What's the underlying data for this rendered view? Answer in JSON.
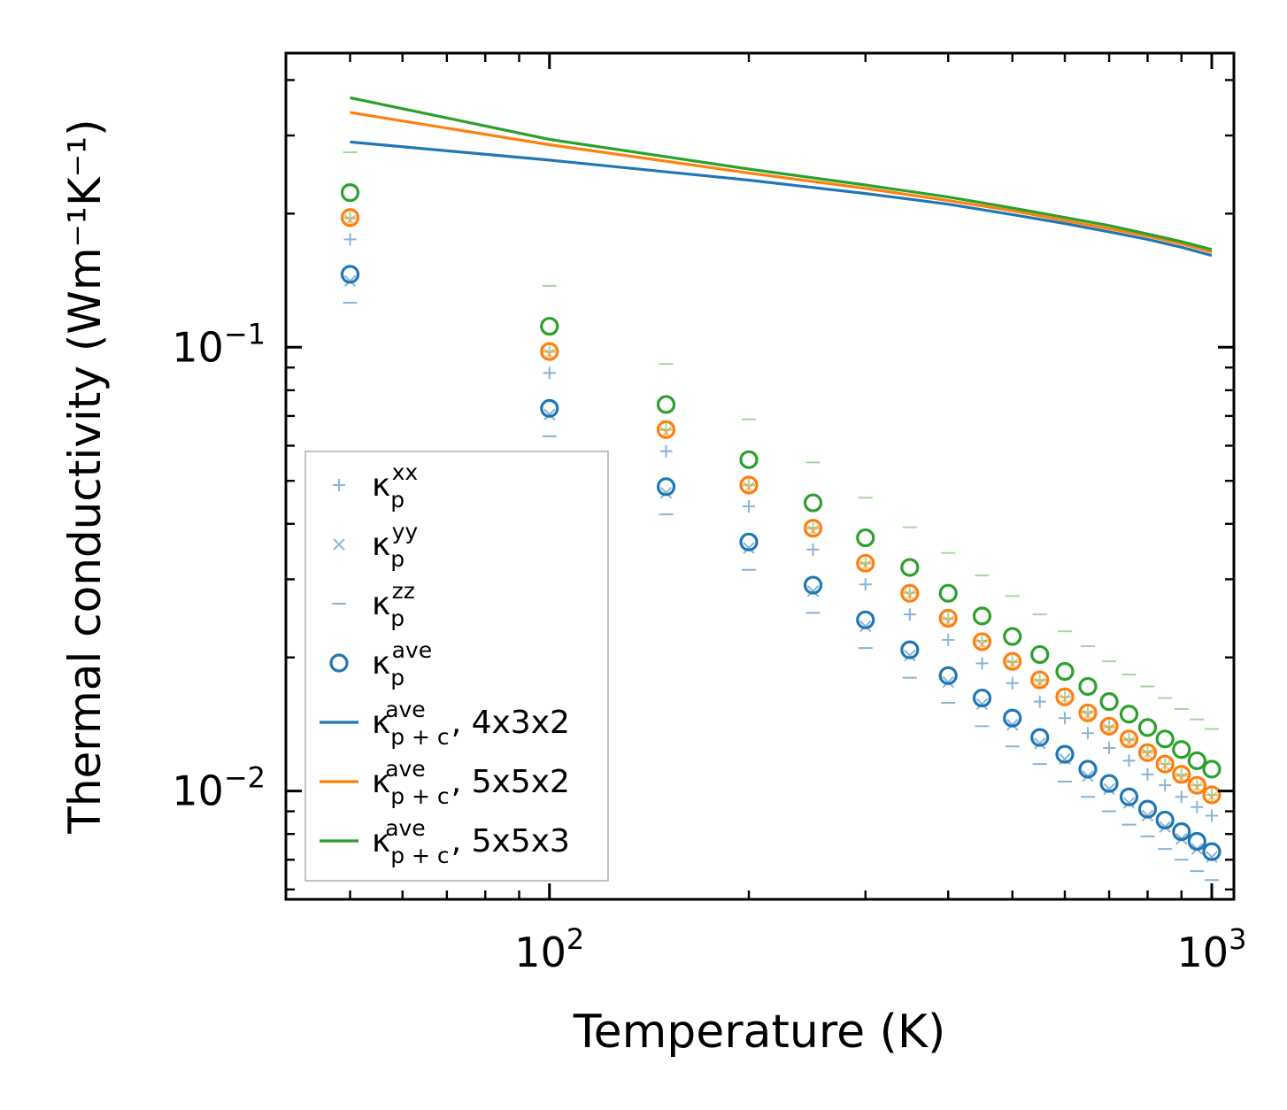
{
  "chart_data": {
    "type": "scatter",
    "title": "",
    "xlabel": "Temperature (K)",
    "ylabel": "Thermal conductivity (Wm⁻¹K⁻¹)",
    "xscale": "log",
    "yscale": "log",
    "xlim": [
      40,
      1080
    ],
    "ylim": [
      0.0057,
      0.46
    ],
    "xticks": [
      {
        "value": 100,
        "base": "10",
        "exp": "2"
      },
      {
        "value": 1000,
        "base": "10",
        "exp": "3"
      }
    ],
    "yticks": [
      {
        "value": 0.01,
        "base": "10",
        "exp": "−2"
      },
      {
        "value": 0.1,
        "base": "10",
        "exp": "−1"
      }
    ],
    "colors": {
      "blue": "#1f77b4",
      "orange": "#ff7f0e",
      "green": "#2ca02c",
      "light_blue": "#8ab4d6",
      "light_green": "#a6d6a0"
    },
    "x": [
      50,
      100,
      150,
      200,
      250,
      300,
      350,
      400,
      450,
      500,
      550,
      600,
      650,
      700,
      750,
      800,
      850,
      900,
      950,
      1000
    ],
    "series": [
      {
        "name": "κp^xx",
        "label_base": "κ",
        "label_sub": "p",
        "label_sup": "xx",
        "kind": "marker",
        "marker": "plus",
        "group": "4x3x2",
        "values": [
          0.175,
          0.0875,
          0.0583,
          0.0438,
          0.035,
          0.0292,
          0.025,
          0.0219,
          0.0194,
          0.0175,
          0.0159,
          0.0146,
          0.0135,
          0.0125,
          0.0117,
          0.0109,
          0.0103,
          0.0097,
          0.0092,
          0.0088
        ]
      },
      {
        "name": "κp^yy",
        "label_base": "κ",
        "label_sub": "p",
        "label_sup": "yy",
        "kind": "marker",
        "marker": "x",
        "group": "4x3x2",
        "values": [
          0.141,
          0.0705,
          0.047,
          0.0353,
          0.0282,
          0.0235,
          0.0202,
          0.0176,
          0.0157,
          0.0141,
          0.0128,
          0.0118,
          0.0108,
          0.0101,
          0.0094,
          0.0088,
          0.0083,
          0.0078,
          0.0074,
          0.0071
        ]
      },
      {
        "name": "κp^zz",
        "label_base": "κ",
        "label_sub": "p",
        "label_sup": "zz",
        "kind": "marker",
        "marker": "hline",
        "group": "4x3x2",
        "values": [
          0.126,
          0.063,
          0.042,
          0.0315,
          0.0252,
          0.021,
          0.018,
          0.0158,
          0.014,
          0.0126,
          0.0115,
          0.0105,
          0.0097,
          0.009,
          0.0084,
          0.0079,
          0.0074,
          0.007,
          0.0066,
          0.0063
        ]
      },
      {
        "name": "κp^ave",
        "label_base": "κ",
        "label_sub": "p",
        "label_sup": "ave",
        "kind": "marker",
        "marker": "circle",
        "group": "4x3x2",
        "values": [
          0.146,
          0.0728,
          0.0485,
          0.0364,
          0.0291,
          0.0243,
          0.0208,
          0.0182,
          0.0162,
          0.0146,
          0.0132,
          0.0121,
          0.0112,
          0.0104,
          0.0097,
          0.0091,
          0.0086,
          0.0081,
          0.0077,
          0.0073
        ]
      },
      {
        "name": "κp^xx (5x5x2)",
        "kind": "marker",
        "marker": "plus",
        "group": "5x5x2",
        "legend": false,
        "values": [
          0.195,
          0.0975,
          0.065,
          0.0488,
          0.039,
          0.0325,
          0.0279,
          0.0244,
          0.0217,
          0.0195,
          0.0177,
          0.0163,
          0.015,
          0.0139,
          0.013,
          0.0122,
          0.0115,
          0.0108,
          0.0103,
          0.0098
        ]
      },
      {
        "name": "κp^yy (5x5x2)",
        "kind": "marker",
        "marker": "x",
        "group": "5x5x2",
        "legend": false,
        "values": [
          0.193,
          0.0965,
          0.0643,
          0.0483,
          0.0386,
          0.0322,
          0.0276,
          0.0241,
          0.0214,
          0.0193,
          0.0175,
          0.0161,
          0.0148,
          0.0138,
          0.0129,
          0.0121,
          0.0114,
          0.0107,
          0.0102,
          0.0097
        ]
      },
      {
        "name": "κp^ave (5x5x2)",
        "kind": "marker",
        "marker": "circle",
        "group": "5x5x2",
        "legend": false,
        "values": [
          0.196,
          0.0978,
          0.0652,
          0.0489,
          0.0391,
          0.0326,
          0.0279,
          0.0245,
          0.0217,
          0.0196,
          0.0178,
          0.0163,
          0.015,
          0.014,
          0.0131,
          0.0122,
          0.0115,
          0.0109,
          0.0103,
          0.0098
        ]
      },
      {
        "name": "κp^xx (5x5x3)",
        "kind": "marker",
        "marker": "plus",
        "group": "5x5x3",
        "legend": false,
        "values": [
          0.196,
          0.098,
          0.0653,
          0.049,
          0.0392,
          0.0327,
          0.028,
          0.0245,
          0.0218,
          0.0196,
          0.0178,
          0.0163,
          0.0151,
          0.014,
          0.0131,
          0.0123,
          0.0115,
          0.0109,
          0.0103,
          0.0098
        ]
      },
      {
        "name": "κp^zz (5x5x3)",
        "kind": "marker",
        "marker": "hline",
        "group": "5x5x3",
        "legend": false,
        "values": [
          0.275,
          0.1375,
          0.0917,
          0.0688,
          0.055,
          0.0458,
          0.0393,
          0.0344,
          0.0306,
          0.0275,
          0.025,
          0.0229,
          0.0212,
          0.0196,
          0.0183,
          0.0172,
          0.0162,
          0.0153,
          0.0145,
          0.0138
        ]
      },
      {
        "name": "κp^ave (5x5x3)",
        "kind": "marker",
        "marker": "circle",
        "group": "5x5x3",
        "legend": false,
        "values": [
          0.223,
          0.1115,
          0.0743,
          0.0558,
          0.0446,
          0.0372,
          0.0319,
          0.0279,
          0.0248,
          0.0223,
          0.0203,
          0.0186,
          0.0172,
          0.0159,
          0.0149,
          0.0139,
          0.0131,
          0.0124,
          0.0117,
          0.0112
        ]
      },
      {
        "name": "κp+c^ave, 4x3x2",
        "label_base": "κ",
        "label_sub": "p + c",
        "label_sup": "ave",
        "label_tail": ", 4x3x2",
        "kind": "line",
        "group": "4x3x2",
        "x": [
          50,
          100,
          200,
          300,
          400,
          500,
          600,
          700,
          800,
          900,
          1000
        ],
        "values": [
          0.29,
          0.264,
          0.238,
          0.222,
          0.21,
          0.199,
          0.19,
          0.182,
          0.175,
          0.168,
          0.161
        ]
      },
      {
        "name": "κp+c^ave, 5x5x2",
        "label_base": "κ",
        "label_sub": "p + c",
        "label_sup": "ave",
        "label_tail": ", 5x5x2",
        "kind": "line",
        "group": "5x5x2",
        "x": [
          50,
          100,
          200,
          300,
          400,
          500,
          600,
          700,
          800,
          900,
          1000
        ],
        "values": [
          0.338,
          0.286,
          0.247,
          0.228,
          0.214,
          0.203,
          0.193,
          0.185,
          0.178,
          0.171,
          0.164
        ]
      },
      {
        "name": "κp+c^ave, 5x5x3",
        "label_base": "κ",
        "label_sub": "p + c",
        "label_sup": "ave",
        "label_tail": ", 5x5x3",
        "kind": "line",
        "group": "5x5x3",
        "x": [
          50,
          100,
          200,
          300,
          400,
          500,
          600,
          700,
          800,
          900,
          1000
        ],
        "values": [
          0.365,
          0.294,
          0.252,
          0.232,
          0.218,
          0.206,
          0.196,
          0.188,
          0.18,
          0.173,
          0.166
        ]
      }
    ],
    "legend": "lower-left"
  }
}
